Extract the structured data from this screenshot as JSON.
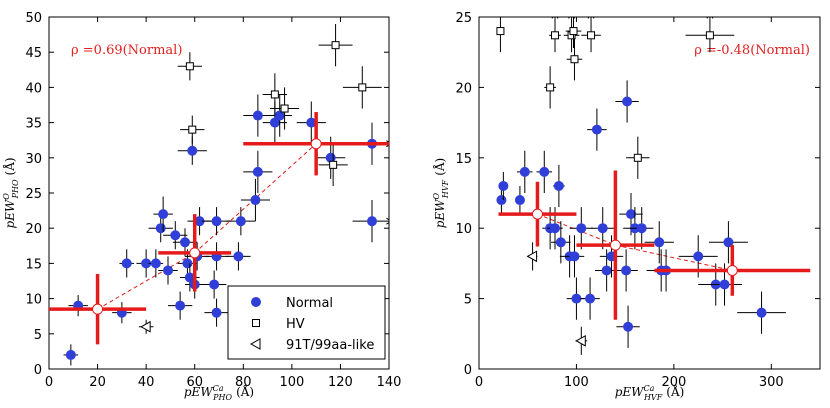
{
  "chart_data": [
    {
      "type": "scatter",
      "panel": "left",
      "xlabel": {
        "base": "pEW",
        "sup": "Ca",
        "sub": "PHO",
        "unit": "(Å)"
      },
      "ylabel": {
        "base": "pEW",
        "sup": "O",
        "sub": "PHO",
        "unit": "(Å)"
      },
      "xlim": [
        0,
        140
      ],
      "ylim": [
        0,
        50
      ],
      "xticks": [
        0,
        20,
        40,
        60,
        80,
        100,
        120,
        140
      ],
      "yticks": [
        0,
        5,
        10,
        15,
        20,
        25,
        30,
        35,
        40,
        45,
        50
      ],
      "annotation": "ρ =0.69(Normal)",
      "annotation_color": "#e02020",
      "legend": {
        "position": "bottom-right",
        "entries": [
          {
            "label": "Normal",
            "marker": "circle"
          },
          {
            "label": "HV",
            "marker": "square"
          },
          {
            "label": "91T/99aa-like",
            "marker": "triangle-left"
          }
        ]
      },
      "series": [
        {
          "name": "Normal",
          "color": "#2f3fd8",
          "points": [
            {
              "x": 9,
              "y": 2,
              "xe": 3,
              "ye": 1.5
            },
            {
              "x": 12,
              "y": 9,
              "xe": 4,
              "ye": 1.5
            },
            {
              "x": 30,
              "y": 8,
              "xe": 4,
              "ye": 1.5
            },
            {
              "x": 32,
              "y": 15,
              "xe": 3,
              "ye": 2
            },
            {
              "x": 40,
              "y": 15,
              "xe": 4,
              "ye": 2
            },
            {
              "x": 44,
              "y": 15,
              "xe": 3,
              "ye": 2
            },
            {
              "x": 46,
              "y": 20,
              "xe": 5,
              "ye": 2
            },
            {
              "x": 47,
              "y": 22,
              "xe": 4,
              "ye": 2.5
            },
            {
              "x": 49,
              "y": 14,
              "xe": 4,
              "ye": 2
            },
            {
              "x": 52,
              "y": 19,
              "xe": 5,
              "ye": 2
            },
            {
              "x": 54,
              "y": 9,
              "xe": 5,
              "ye": 2
            },
            {
              "x": 56,
              "y": 18,
              "xe": 5,
              "ye": 2
            },
            {
              "x": 57,
              "y": 15,
              "xe": 4,
              "ye": 2
            },
            {
              "x": 58,
              "y": 13,
              "xe": 4,
              "ye": 2
            },
            {
              "x": 59,
              "y": 31,
              "xe": 6,
              "ye": 2
            },
            {
              "x": 60,
              "y": 12,
              "xe": 4,
              "ye": 2
            },
            {
              "x": 61,
              "y": 16,
              "xe": 5,
              "ye": 2
            },
            {
              "x": 62,
              "y": 21,
              "xe": 5,
              "ye": 2
            },
            {
              "x": 68,
              "y": 12,
              "xe": 5,
              "ye": 2
            },
            {
              "x": 69,
              "y": 21,
              "xe": 6,
              "ye": 2
            },
            {
              "x": 69,
              "y": 16,
              "xe": 5,
              "ye": 2
            },
            {
              "x": 69,
              "y": 8,
              "xe": 5,
              "ye": 2
            },
            {
              "x": 78,
              "y": 16,
              "xe": 5,
              "ye": 2
            },
            {
              "x": 79,
              "y": 21,
              "xe": 6,
              "ye": 2
            },
            {
              "x": 85,
              "y": 24,
              "xe": 6,
              "ye": 3
            },
            {
              "x": 86,
              "y": 28,
              "xe": 6,
              "ye": 3
            },
            {
              "x": 86,
              "y": 36,
              "xe": 6,
              "ye": 3
            },
            {
              "x": 93,
              "y": 35,
              "xe": 5,
              "ye": 3
            },
            {
              "x": 95,
              "y": 36,
              "xe": 5,
              "ye": 3
            },
            {
              "x": 108,
              "y": 35,
              "xe": 6,
              "ye": 3
            },
            {
              "x": 116,
              "y": 30,
              "xe": 6,
              "ye": 3
            },
            {
              "x": 133,
              "y": 32,
              "xe": 8,
              "ye": 3,
              "arrow_right": true
            },
            {
              "x": 133,
              "y": 21,
              "xe": 8,
              "ye": 3,
              "arrow_right": true
            }
          ]
        },
        {
          "name": "HV",
          "points": [
            {
              "x": 58,
              "y": 43,
              "xe": 5,
              "ye": 2
            },
            {
              "x": 59,
              "y": 34,
              "xe": 5,
              "ye": 2
            },
            {
              "x": 93,
              "y": 39,
              "xe": 5,
              "ye": 3
            },
            {
              "x": 97,
              "y": 37,
              "xe": 6,
              "ye": 3
            },
            {
              "x": 117,
              "y": 29,
              "xe": 6,
              "ye": 3
            },
            {
              "x": 118,
              "y": 46,
              "xe": 7,
              "ye": 3
            },
            {
              "x": 129,
              "y": 40,
              "xe": 8,
              "ye": 3
            }
          ]
        },
        {
          "name": "91T/99aa-like",
          "points": [
            {
              "x": 40,
              "y": 6,
              "xe": 3,
              "ye": 1
            }
          ]
        }
      ],
      "binned_means": [
        {
          "x": 20,
          "y": 8.5,
          "xe": 20,
          "ye": 5
        },
        {
          "x": 60,
          "y": 16.5,
          "xe": 15,
          "ye": 5.5
        },
        {
          "x": 110,
          "y": 32,
          "xe": 30,
          "ye": 4.5
        }
      ]
    },
    {
      "type": "scatter",
      "panel": "right",
      "xlabel": {
        "base": "pEW",
        "sup": "Ca",
        "sub": "HVF",
        "unit": "(Å)"
      },
      "ylabel": {
        "base": "pEW",
        "sup": "O",
        "sub": "HVF",
        "unit": "(Å)"
      },
      "xlim": [
        0,
        350
      ],
      "ylim": [
        0,
        25
      ],
      "xticks": [
        0,
        100,
        200,
        300
      ],
      "yticks": [
        0,
        5,
        10,
        15,
        20,
        25
      ],
      "annotation": "ρ =-0.48(Normal)",
      "annotation_color": "#e02020",
      "series": [
        {
          "name": "Normal",
          "color": "#2f3fd8",
          "points": [
            {
              "x": 23,
              "y": 12,
              "xe": 5,
              "ye": 1
            },
            {
              "x": 25,
              "y": 13,
              "xe": 5,
              "ye": 1
            },
            {
              "x": 42,
              "y": 12,
              "xe": 5,
              "ye": 1
            },
            {
              "x": 47,
              "y": 14,
              "xe": 8,
              "ye": 1.5
            },
            {
              "x": 67,
              "y": 14,
              "xe": 8,
              "ye": 1.5
            },
            {
              "x": 73,
              "y": 10,
              "xe": 8,
              "ye": 1.5
            },
            {
              "x": 78,
              "y": 10,
              "xe": 8,
              "ye": 1.5
            },
            {
              "x": 82,
              "y": 13,
              "xe": 6,
              "ye": 1.5
            },
            {
              "x": 84,
              "y": 9,
              "xe": 10,
              "ye": 1.5
            },
            {
              "x": 93,
              "y": 8,
              "xe": 10,
              "ye": 1.5
            },
            {
              "x": 98,
              "y": 8,
              "xe": 10,
              "ye": 1.5
            },
            {
              "x": 100,
              "y": 5,
              "xe": 10,
              "ye": 1.5
            },
            {
              "x": 105,
              "y": 10,
              "xe": 12,
              "ye": 1.5
            },
            {
              "x": 114,
              "y": 5,
              "xe": 10,
              "ye": 1.5
            },
            {
              "x": 121,
              "y": 17,
              "xe": 10,
              "ye": 1.5
            },
            {
              "x": 127,
              "y": 10,
              "xe": 12,
              "ye": 1.5
            },
            {
              "x": 131,
              "y": 7,
              "xe": 12,
              "ye": 1.5
            },
            {
              "x": 136,
              "y": 8,
              "xe": 12,
              "ye": 1.5
            },
            {
              "x": 151,
              "y": 7,
              "xe": 12,
              "ye": 1.5
            },
            {
              "x": 152,
              "y": 19,
              "xe": 12,
              "ye": 1.5
            },
            {
              "x": 153,
              "y": 3,
              "xe": 12,
              "ye": 1.5
            },
            {
              "x": 156,
              "y": 11,
              "xe": 12,
              "ye": 1.5
            },
            {
              "x": 160,
              "y": 10,
              "xe": 12,
              "ye": 1.5
            },
            {
              "x": 167,
              "y": 10,
              "xe": 12,
              "ye": 1.5
            },
            {
              "x": 185,
              "y": 9,
              "xe": 15,
              "ye": 1.5
            },
            {
              "x": 187,
              "y": 7,
              "xe": 15,
              "ye": 1.5
            },
            {
              "x": 192,
              "y": 7,
              "xe": 15,
              "ye": 1.5
            },
            {
              "x": 225,
              "y": 8,
              "xe": 20,
              "ye": 1.5
            },
            {
              "x": 243,
              "y": 6,
              "xe": 18,
              "ye": 1.5
            },
            {
              "x": 252,
              "y": 6,
              "xe": 18,
              "ye": 1.5
            },
            {
              "x": 256,
              "y": 9,
              "xe": 20,
              "ye": 1.5
            },
            {
              "x": 290,
              "y": 4,
              "xe": 25,
              "ye": 1.5
            }
          ]
        },
        {
          "name": "HV",
          "points": [
            {
              "x": 22,
              "y": 24,
              "xe": 4,
              "ye": 1.5
            },
            {
              "x": 73,
              "y": 20,
              "xe": 6,
              "ye": 1.5
            },
            {
              "x": 78,
              "y": 23.7,
              "xe": 6,
              "ye": 1.2,
              "arrow_up": true
            },
            {
              "x": 95,
              "y": 23.7,
              "xe": 8,
              "ye": 1.2,
              "arrow_up": true
            },
            {
              "x": 97,
              "y": 24,
              "xe": 8,
              "ye": 1.2,
              "arrow_up": true
            },
            {
              "x": 98,
              "y": 22,
              "xe": 8,
              "ye": 1.5
            },
            {
              "x": 115,
              "y": 23.7,
              "xe": 10,
              "ye": 1.2,
              "arrow_up": true
            },
            {
              "x": 163,
              "y": 15,
              "xe": 12,
              "ye": 1.5
            },
            {
              "x": 237,
              "y": 23.7,
              "xe": 25,
              "ye": 1.2,
              "arrow_up": true
            }
          ]
        },
        {
          "name": "91T/99aa-like",
          "points": [
            {
              "x": 55,
              "y": 8,
              "xe": 5,
              "ye": 1
            },
            {
              "x": 105,
              "y": 2,
              "xe": 6,
              "ye": 1
            }
          ]
        }
      ],
      "binned_means": [
        {
          "x": 60,
          "y": 11,
          "xe": 40,
          "ye": 2.3
        },
        {
          "x": 140,
          "y": 8.8,
          "xe": 40,
          "ye": 5.3
        },
        {
          "x": 260,
          "y": 7,
          "xe": 80,
          "ye": 1.8
        }
      ]
    }
  ]
}
